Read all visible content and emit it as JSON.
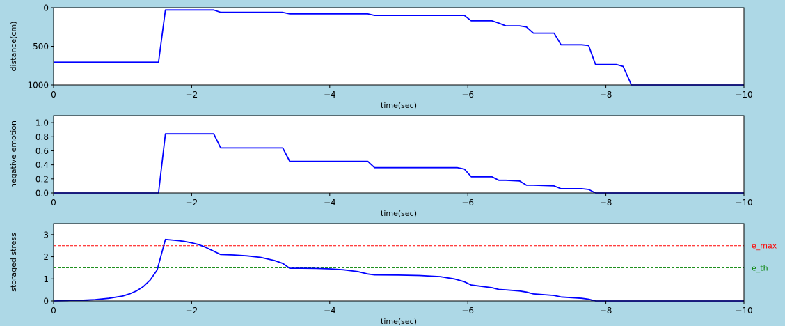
{
  "figure": {
    "background": "#add8e6"
  },
  "chart_data": [
    {
      "type": "line",
      "ylabel": "distance(cm)",
      "xlabel": "time(sec)",
      "xlim": [
        0,
        -10
      ],
      "ylim": [
        1000,
        0
      ],
      "y_inverted": true,
      "xticks": [
        0,
        -2,
        -4,
        -6,
        -8,
        -10
      ],
      "xtick_labels": [
        "0",
        "−2",
        "−4",
        "−6",
        "−8",
        "−10"
      ],
      "yticks": [
        0,
        500,
        1000
      ],
      "ytick_labels": [
        "0",
        "500",
        "1000"
      ],
      "grid": false,
      "series": [
        {
          "color": "#0000ff",
          "x": [
            0,
            -1.52,
            -1.62,
            -2.32,
            -2.42,
            -3.32,
            -3.42,
            -4.55,
            -4.65,
            -5.95,
            -6.05,
            -6.35,
            -6.45,
            -6.55,
            -6.75,
            -6.85,
            -6.95,
            -7.25,
            -7.35,
            -7.65,
            -7.75,
            -7.85,
            -8.15,
            -8.25,
            -8.37,
            -10
          ],
          "y": [
            705,
            705,
            30,
            30,
            60,
            60,
            80,
            80,
            100,
            100,
            170,
            170,
            200,
            235,
            235,
            250,
            330,
            330,
            480,
            480,
            490,
            735,
            735,
            760,
            1000,
            1000
          ]
        }
      ]
    },
    {
      "type": "line",
      "ylabel": "negative emotion",
      "xlabel": "time(sec)",
      "xlim": [
        0,
        -10
      ],
      "ylim": [
        0,
        1.1
      ],
      "xticks": [
        0,
        -2,
        -4,
        -6,
        -8,
        -10
      ],
      "xtick_labels": [
        "0",
        "−2",
        "−4",
        "−6",
        "−8",
        "−10"
      ],
      "yticks": [
        0.0,
        0.2,
        0.4,
        0.6,
        0.8,
        1.0
      ],
      "ytick_labels": [
        "0.0",
        "0.2",
        "0.4",
        "0.6",
        "0.8",
        "1.0"
      ],
      "grid": false,
      "series": [
        {
          "color": "#0000ff",
          "x": [
            0,
            -1.52,
            -1.62,
            -2.32,
            -2.42,
            -3.32,
            -3.42,
            -4.55,
            -4.65,
            -5.85,
            -5.95,
            -6.05,
            -6.35,
            -6.45,
            -6.55,
            -6.75,
            -6.85,
            -6.95,
            -7.25,
            -7.35,
            -7.65,
            -7.75,
            -7.85,
            -10
          ],
          "y": [
            0,
            0,
            0.84,
            0.84,
            0.64,
            0.64,
            0.45,
            0.45,
            0.36,
            0.36,
            0.34,
            0.23,
            0.23,
            0.18,
            0.18,
            0.17,
            0.11,
            0.11,
            0.1,
            0.06,
            0.06,
            0.05,
            0,
            0
          ]
        }
      ]
    },
    {
      "type": "line",
      "ylabel": "storaged stress",
      "xlabel": "time(sec)",
      "xlim": [
        0,
        -10
      ],
      "ylim": [
        0,
        3.5
      ],
      "xticks": [
        0,
        -2,
        -4,
        -6,
        -8,
        -10
      ],
      "xtick_labels": [
        "0",
        "−2",
        "−4",
        "−6",
        "−8",
        "−10"
      ],
      "yticks": [
        0,
        1,
        2,
        3
      ],
      "ytick_labels": [
        "0",
        "1",
        "2",
        "3"
      ],
      "grid": false,
      "series": [
        {
          "color": "#0000ff",
          "x": [
            0,
            -0.2,
            -0.4,
            -0.6,
            -0.8,
            -1.0,
            -1.1,
            -1.2,
            -1.3,
            -1.4,
            -1.5,
            -1.62,
            -1.7,
            -1.8,
            -1.9,
            -2.0,
            -2.1,
            -2.2,
            -2.3,
            -2.42,
            -2.6,
            -2.8,
            -3.0,
            -3.2,
            -3.32,
            -3.42,
            -3.6,
            -3.8,
            -4.0,
            -4.2,
            -4.4,
            -4.55,
            -4.65,
            -5.0,
            -5.3,
            -5.6,
            -5.8,
            -5.95,
            -6.05,
            -6.35,
            -6.45,
            -6.55,
            -6.75,
            -6.85,
            -6.95,
            -7.25,
            -7.35,
            -7.65,
            -7.75,
            -7.85,
            -10
          ],
          "y": [
            0,
            0.01,
            0.03,
            0.06,
            0.12,
            0.22,
            0.32,
            0.45,
            0.65,
            0.95,
            1.4,
            2.78,
            2.76,
            2.73,
            2.69,
            2.63,
            2.55,
            2.43,
            2.28,
            2.1,
            2.08,
            2.04,
            1.97,
            1.83,
            1.7,
            1.48,
            1.48,
            1.47,
            1.45,
            1.41,
            1.33,
            1.22,
            1.18,
            1.17,
            1.15,
            1.1,
            1.0,
            0.87,
            0.72,
            0.6,
            0.52,
            0.5,
            0.45,
            0.4,
            0.32,
            0.25,
            0.18,
            0.12,
            0.08,
            0.0,
            0.0
          ]
        }
      ],
      "hlines": [
        {
          "y": 2.5,
          "color": "#ff0000",
          "style": "dashed",
          "label": "e_max"
        },
        {
          "y": 1.5,
          "color": "#008000",
          "style": "dashed",
          "label": "e_th"
        }
      ]
    }
  ]
}
